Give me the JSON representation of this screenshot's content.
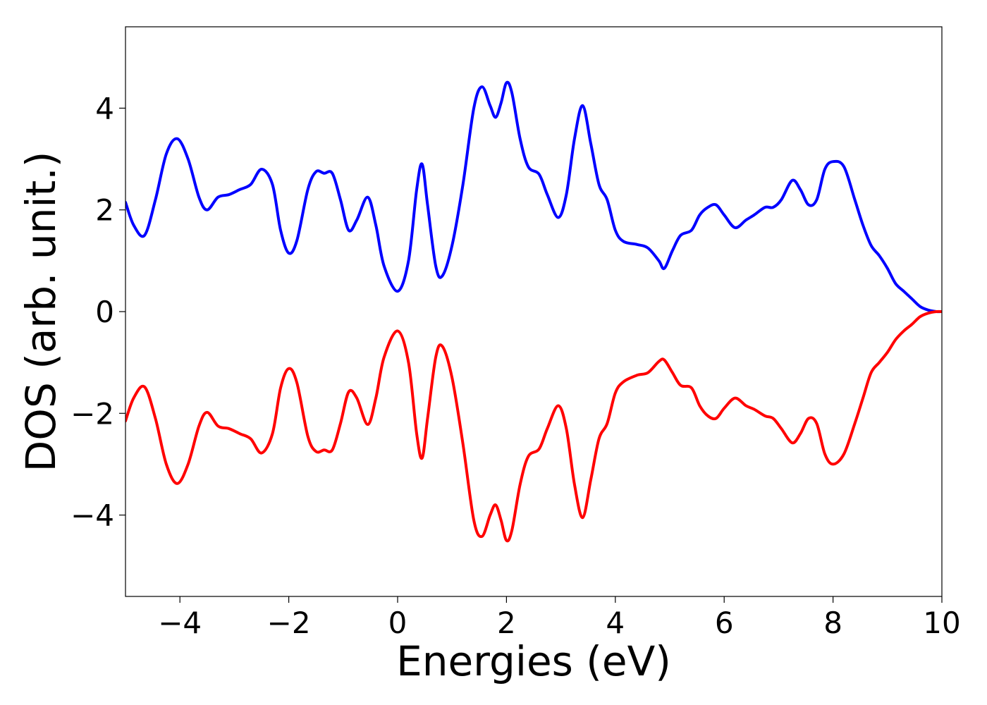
{
  "chart_data": {
    "type": "line",
    "title": "",
    "xlabel": "Energies (eV)",
    "ylabel": "DOS (arb. unit.)",
    "xlim": [
      -5,
      10
    ],
    "ylim": [
      -5.6,
      5.6
    ],
    "xticks": [
      -4,
      -2,
      0,
      2,
      4,
      6,
      8,
      10
    ],
    "xtick_labels": [
      "−4",
      "−2",
      "0",
      "2",
      "4",
      "6",
      "8",
      "10"
    ],
    "yticks": [
      -4,
      -2,
      0,
      2,
      4
    ],
    "ytick_labels": [
      "−4",
      "−2",
      "0",
      "2",
      "4"
    ],
    "grid": false,
    "legend": "none",
    "series": [
      {
        "color": "#0000ff",
        "points": [
          [
            -5.0,
            2.15
          ],
          [
            -4.85,
            1.7
          ],
          [
            -4.65,
            1.5
          ],
          [
            -4.45,
            2.2
          ],
          [
            -4.25,
            3.1
          ],
          [
            -4.05,
            3.4
          ],
          [
            -3.85,
            3.0
          ],
          [
            -3.65,
            2.25
          ],
          [
            -3.5,
            2.0
          ],
          [
            -3.3,
            2.25
          ],
          [
            -3.1,
            2.3
          ],
          [
            -2.9,
            2.4
          ],
          [
            -2.7,
            2.5
          ],
          [
            -2.5,
            2.8
          ],
          [
            -2.3,
            2.5
          ],
          [
            -2.15,
            1.6
          ],
          [
            -2.0,
            1.15
          ],
          [
            -1.85,
            1.4
          ],
          [
            -1.65,
            2.4
          ],
          [
            -1.5,
            2.75
          ],
          [
            -1.35,
            2.72
          ],
          [
            -1.2,
            2.72
          ],
          [
            -1.05,
            2.2
          ],
          [
            -0.9,
            1.6
          ],
          [
            -0.75,
            1.8
          ],
          [
            -0.55,
            2.25
          ],
          [
            -0.4,
            1.7
          ],
          [
            -0.25,
            0.9
          ],
          [
            0.0,
            0.4
          ],
          [
            0.2,
            1.0
          ],
          [
            0.35,
            2.4
          ],
          [
            0.45,
            2.9
          ],
          [
            0.55,
            2.1
          ],
          [
            0.7,
            0.9
          ],
          [
            0.82,
            0.7
          ],
          [
            1.0,
            1.3
          ],
          [
            1.2,
            2.5
          ],
          [
            1.4,
            4.0
          ],
          [
            1.55,
            4.42
          ],
          [
            1.7,
            4.05
          ],
          [
            1.8,
            3.82
          ],
          [
            1.9,
            4.1
          ],
          [
            2.0,
            4.5
          ],
          [
            2.1,
            4.3
          ],
          [
            2.25,
            3.4
          ],
          [
            2.4,
            2.85
          ],
          [
            2.6,
            2.7
          ],
          [
            2.75,
            2.3
          ],
          [
            2.95,
            1.85
          ],
          [
            3.1,
            2.3
          ],
          [
            3.25,
            3.4
          ],
          [
            3.4,
            4.05
          ],
          [
            3.55,
            3.3
          ],
          [
            3.7,
            2.5
          ],
          [
            3.85,
            2.2
          ],
          [
            4.0,
            1.6
          ],
          [
            4.15,
            1.38
          ],
          [
            4.4,
            1.32
          ],
          [
            4.6,
            1.25
          ],
          [
            4.8,
            1.0
          ],
          [
            4.9,
            0.85
          ],
          [
            5.05,
            1.2
          ],
          [
            5.2,
            1.5
          ],
          [
            5.4,
            1.6
          ],
          [
            5.55,
            1.9
          ],
          [
            5.7,
            2.05
          ],
          [
            5.85,
            2.1
          ],
          [
            6.0,
            1.9
          ],
          [
            6.2,
            1.65
          ],
          [
            6.4,
            1.8
          ],
          [
            6.55,
            1.9
          ],
          [
            6.75,
            2.05
          ],
          [
            6.9,
            2.05
          ],
          [
            7.05,
            2.2
          ],
          [
            7.25,
            2.58
          ],
          [
            7.4,
            2.4
          ],
          [
            7.55,
            2.1
          ],
          [
            7.7,
            2.2
          ],
          [
            7.85,
            2.8
          ],
          [
            8.0,
            2.95
          ],
          [
            8.2,
            2.85
          ],
          [
            8.4,
            2.2
          ],
          [
            8.55,
            1.7
          ],
          [
            8.7,
            1.3
          ],
          [
            8.85,
            1.1
          ],
          [
            9.0,
            0.85
          ],
          [
            9.15,
            0.55
          ],
          [
            9.3,
            0.4
          ],
          [
            9.45,
            0.25
          ],
          [
            9.6,
            0.1
          ],
          [
            9.75,
            0.03
          ],
          [
            9.9,
            0.0
          ],
          [
            10.0,
            0.0
          ]
        ]
      },
      {
        "color": "#ff0000",
        "points": [
          [
            -5.0,
            -2.15
          ],
          [
            -4.85,
            -1.7
          ],
          [
            -4.65,
            -1.48
          ],
          [
            -4.45,
            -2.1
          ],
          [
            -4.25,
            -3.0
          ],
          [
            -4.05,
            -3.38
          ],
          [
            -3.85,
            -3.0
          ],
          [
            -3.65,
            -2.25
          ],
          [
            -3.5,
            -1.98
          ],
          [
            -3.3,
            -2.25
          ],
          [
            -3.1,
            -2.3
          ],
          [
            -2.9,
            -2.4
          ],
          [
            -2.7,
            -2.5
          ],
          [
            -2.5,
            -2.78
          ],
          [
            -2.3,
            -2.4
          ],
          [
            -2.15,
            -1.5
          ],
          [
            -2.0,
            -1.12
          ],
          [
            -1.85,
            -1.4
          ],
          [
            -1.65,
            -2.45
          ],
          [
            -1.5,
            -2.75
          ],
          [
            -1.35,
            -2.72
          ],
          [
            -1.2,
            -2.72
          ],
          [
            -1.05,
            -2.2
          ],
          [
            -0.9,
            -1.58
          ],
          [
            -0.75,
            -1.7
          ],
          [
            -0.55,
            -2.22
          ],
          [
            -0.4,
            -1.7
          ],
          [
            -0.25,
            -0.9
          ],
          [
            0.0,
            -0.38
          ],
          [
            0.2,
            -1.0
          ],
          [
            0.35,
            -2.4
          ],
          [
            0.45,
            -2.88
          ],
          [
            0.55,
            -2.1
          ],
          [
            0.7,
            -0.9
          ],
          [
            0.82,
            -0.68
          ],
          [
            1.0,
            -1.3
          ],
          [
            1.2,
            -2.6
          ],
          [
            1.4,
            -4.1
          ],
          [
            1.55,
            -4.42
          ],
          [
            1.7,
            -4.0
          ],
          [
            1.8,
            -3.8
          ],
          [
            1.9,
            -4.1
          ],
          [
            2.0,
            -4.5
          ],
          [
            2.1,
            -4.3
          ],
          [
            2.25,
            -3.4
          ],
          [
            2.4,
            -2.85
          ],
          [
            2.6,
            -2.7
          ],
          [
            2.75,
            -2.3
          ],
          [
            2.95,
            -1.85
          ],
          [
            3.1,
            -2.3
          ],
          [
            3.25,
            -3.4
          ],
          [
            3.4,
            -4.05
          ],
          [
            3.55,
            -3.3
          ],
          [
            3.7,
            -2.5
          ],
          [
            3.85,
            -2.2
          ],
          [
            4.0,
            -1.6
          ],
          [
            4.15,
            -1.38
          ],
          [
            4.4,
            -1.25
          ],
          [
            4.6,
            -1.2
          ],
          [
            4.8,
            -0.98
          ],
          [
            4.9,
            -0.95
          ],
          [
            5.05,
            -1.2
          ],
          [
            5.2,
            -1.45
          ],
          [
            5.4,
            -1.5
          ],
          [
            5.55,
            -1.85
          ],
          [
            5.7,
            -2.05
          ],
          [
            5.85,
            -2.1
          ],
          [
            6.0,
            -1.9
          ],
          [
            6.2,
            -1.7
          ],
          [
            6.4,
            -1.85
          ],
          [
            6.55,
            -1.92
          ],
          [
            6.75,
            -2.05
          ],
          [
            6.9,
            -2.1
          ],
          [
            7.05,
            -2.3
          ],
          [
            7.25,
            -2.58
          ],
          [
            7.4,
            -2.4
          ],
          [
            7.55,
            -2.1
          ],
          [
            7.7,
            -2.2
          ],
          [
            7.85,
            -2.8
          ],
          [
            8.0,
            -3.0
          ],
          [
            8.2,
            -2.8
          ],
          [
            8.4,
            -2.2
          ],
          [
            8.55,
            -1.7
          ],
          [
            8.7,
            -1.2
          ],
          [
            8.85,
            -1.0
          ],
          [
            9.0,
            -0.8
          ],
          [
            9.15,
            -0.55
          ],
          [
            9.3,
            -0.38
          ],
          [
            9.45,
            -0.25
          ],
          [
            9.6,
            -0.1
          ],
          [
            9.75,
            -0.03
          ],
          [
            9.9,
            0.0
          ],
          [
            10.0,
            0.0
          ]
        ]
      }
    ]
  }
}
